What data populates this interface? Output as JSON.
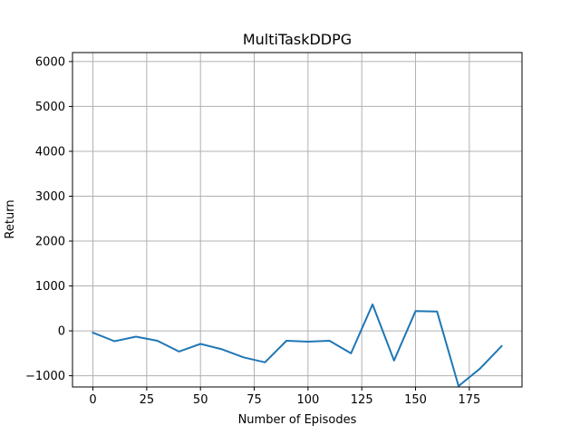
{
  "chart_data": {
    "type": "line",
    "title": "MultiTaskDDPG",
    "xlabel": "Number of Episodes",
    "ylabel": "Return",
    "xlim": [
      -9.5,
      199.5
    ],
    "ylim": [
      -1250,
      6200
    ],
    "x_ticks": [
      0,
      25,
      50,
      75,
      100,
      125,
      150,
      175
    ],
    "y_ticks": [
      -1000,
      0,
      1000,
      2000,
      3000,
      4000,
      5000,
      6000
    ],
    "grid": true,
    "line_color": "#1f77b4",
    "grid_color": "#b0b0b0",
    "series": [
      {
        "x": [
          0,
          10,
          20,
          30,
          40,
          50,
          60,
          70,
          80,
          90,
          100,
          110,
          120,
          130,
          140,
          150,
          160,
          170,
          180,
          190
        ],
        "values": [
          -40,
          -230,
          -130,
          -220,
          -460,
          -290,
          -410,
          -590,
          -700,
          -220,
          -240,
          -220,
          -500,
          590,
          -660,
          440,
          430,
          -1230,
          -840,
          -340
        ]
      }
    ]
  }
}
